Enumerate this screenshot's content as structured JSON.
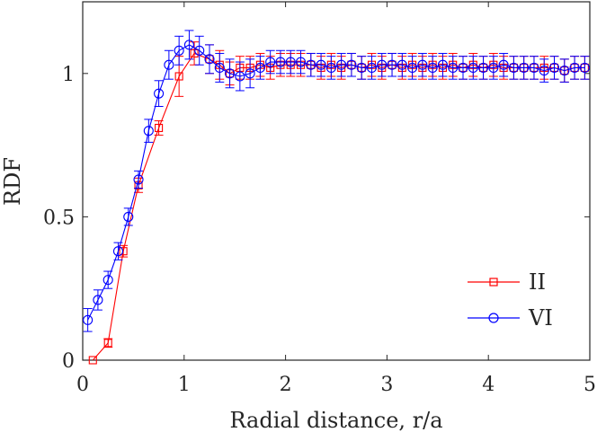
{
  "chart_data": {
    "type": "line",
    "title": "",
    "xlabel": "Radial distance, r/a",
    "ylabel": "RDF",
    "xlim": [
      0,
      5
    ],
    "ylim": [
      0,
      1.25
    ],
    "xticks": [
      0,
      1,
      2,
      3,
      4,
      5
    ],
    "xtick_labels": [
      "0",
      "1",
      "2",
      "3",
      "4",
      "5"
    ],
    "yticks": [
      0,
      0.5,
      1
    ],
    "ytick_labels": [
      "0",
      "0.5",
      "1"
    ],
    "grid": false,
    "legend_position": "bottom-right",
    "series": [
      {
        "name": "II",
        "color": "#ff0000",
        "marker": "square",
        "x": [
          0.1,
          0.25,
          0.4,
          0.55,
          0.75,
          0.95,
          1.1,
          1.25,
          1.35,
          1.45,
          1.55,
          1.65,
          1.75,
          1.85,
          1.95,
          2.05,
          2.15,
          2.25,
          2.35,
          2.45,
          2.55,
          2.65,
          2.75,
          2.85,
          2.95,
          3.05,
          3.15,
          3.25,
          3.35,
          3.45,
          3.55,
          3.65,
          3.75,
          3.85,
          3.95,
          4.05,
          4.15,
          4.25,
          4.35,
          4.45,
          4.55,
          4.65,
          4.75,
          4.85,
          4.95
        ],
        "y": [
          0.0,
          0.06,
          0.38,
          0.61,
          0.81,
          0.99,
          1.07,
          1.05,
          1.03,
          1.0,
          1.02,
          1.02,
          1.03,
          1.02,
          1.03,
          1.03,
          1.03,
          1.03,
          1.02,
          1.03,
          1.02,
          1.03,
          1.02,
          1.03,
          1.02,
          1.03,
          1.02,
          1.03,
          1.02,
          1.03,
          1.02,
          1.03,
          1.02,
          1.03,
          1.02,
          1.03,
          1.02,
          1.02,
          1.02,
          1.02,
          1.02,
          1.02,
          1.01,
          1.02,
          1.02
        ],
        "err": [
          0.0,
          0.015,
          0.02,
          0.025,
          0.025,
          0.07,
          0.04,
          0.05,
          0.05,
          0.04,
          0.04,
          0.04,
          0.04,
          0.04,
          0.04,
          0.04,
          0.04,
          0.04,
          0.04,
          0.04,
          0.04,
          0.04,
          0.04,
          0.04,
          0.04,
          0.04,
          0.04,
          0.04,
          0.04,
          0.04,
          0.04,
          0.04,
          0.04,
          0.04,
          0.04,
          0.04,
          0.04,
          0.04,
          0.04,
          0.04,
          0.04,
          0.04,
          0.04,
          0.04,
          0.04
        ]
      },
      {
        "name": "VI",
        "color": "#0000ff",
        "marker": "circle",
        "x": [
          0.05,
          0.15,
          0.25,
          0.35,
          0.45,
          0.55,
          0.65,
          0.75,
          0.85,
          0.95,
          1.05,
          1.15,
          1.25,
          1.35,
          1.45,
          1.55,
          1.65,
          1.75,
          1.85,
          1.95,
          2.05,
          2.15,
          2.25,
          2.35,
          2.45,
          2.55,
          2.65,
          2.75,
          2.85,
          2.95,
          3.05,
          3.15,
          3.25,
          3.35,
          3.45,
          3.55,
          3.65,
          3.75,
          3.85,
          3.95,
          4.05,
          4.15,
          4.25,
          4.35,
          4.45,
          4.55,
          4.65,
          4.75,
          4.85,
          4.95
        ],
        "y": [
          0.14,
          0.21,
          0.28,
          0.38,
          0.5,
          0.63,
          0.8,
          0.93,
          1.03,
          1.08,
          1.1,
          1.08,
          1.05,
          1.02,
          1.0,
          0.99,
          1.0,
          1.02,
          1.04,
          1.04,
          1.04,
          1.04,
          1.03,
          1.03,
          1.02,
          1.03,
          1.03,
          1.02,
          1.02,
          1.03,
          1.03,
          1.03,
          1.02,
          1.03,
          1.02,
          1.03,
          1.02,
          1.02,
          1.02,
          1.02,
          1.02,
          1.03,
          1.02,
          1.02,
          1.02,
          1.01,
          1.02,
          1.01,
          1.02,
          1.02
        ],
        "err": [
          0.04,
          0.035,
          0.03,
          0.03,
          0.03,
          0.03,
          0.04,
          0.045,
          0.05,
          0.05,
          0.05,
          0.05,
          0.05,
          0.05,
          0.05,
          0.05,
          0.05,
          0.04,
          0.04,
          0.04,
          0.04,
          0.04,
          0.04,
          0.04,
          0.04,
          0.04,
          0.04,
          0.04,
          0.04,
          0.04,
          0.04,
          0.04,
          0.04,
          0.04,
          0.04,
          0.04,
          0.04,
          0.04,
          0.04,
          0.04,
          0.04,
          0.04,
          0.04,
          0.04,
          0.04,
          0.04,
          0.04,
          0.04,
          0.04,
          0.04
        ]
      }
    ]
  }
}
